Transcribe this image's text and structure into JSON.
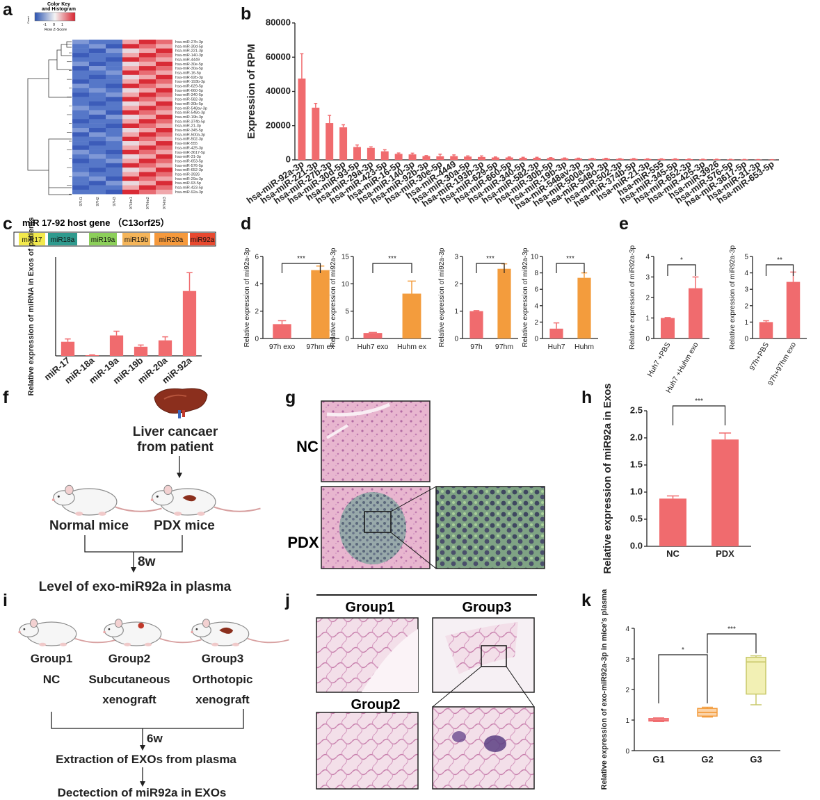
{
  "panels": [
    "a",
    "b",
    "c",
    "d",
    "e",
    "f",
    "g",
    "h",
    "i",
    "j",
    "k"
  ],
  "colors": {
    "red": "#f06b6e",
    "orange": "#f39c3d",
    "green": "#c8c86a",
    "dark": "#222222"
  },
  "a": {
    "color_key_title": "Color Key",
    "color_key_subtitle": "and Histogram",
    "color_key_count": "Count",
    "color_key_ticks": [
      "-1",
      "0",
      "1"
    ],
    "color_key_axis": "Row Z-Score",
    "columns": [
      "97H1",
      "97H2",
      "97H3",
      "97Hm1",
      "97Hm2",
      "97Hm3"
    ],
    "rows": [
      "hsa-miR-27b-3p",
      "hsa-miR-30d-5p",
      "hsa-miR-221-3p",
      "hsa-miR-140-3p",
      "hsa-miR-4449",
      "hsa-miR-30e-5p",
      "hsa-miR-30a-5p",
      "hsa-miR-16-5p",
      "hsa-miR-92b-3p",
      "hsa-miR-193b-3p",
      "hsa-miR-629-5p",
      "hsa-miR-660-5p",
      "hsa-miR-340-5p",
      "hsa-miR-582-3p",
      "hsa-miR-30b-5p",
      "hsa-miR-548av-3p",
      "hsa-miR-548o-3p",
      "hsa-miR-19b-3p",
      "hsa-miR-374b-5p",
      "hsa-miR-21-3p",
      "hsa-miR-345-5p",
      "hsa-miR-500a-3p",
      "hsa-miR-502-3p",
      "hsa-miR-555",
      "hsa-miR-425-3p",
      "hsa-miR-3617-5p",
      "hsa-miR-31-3p",
      "hsa-miR-653-5p",
      "hsa-miR-576-5p",
      "hsa-miR-652-3p",
      "hsa-miR-3926",
      "hsa-miR-29a-3p",
      "hsa-miR-93-5p",
      "hsa-miR-423-5p",
      "hsa-miR-92a-3p"
    ]
  },
  "c": {
    "title": "miR 17-92 host gene （C13orf25）"
  },
  "d": {
    "sig": [
      "***",
      "***",
      "***",
      "***"
    ]
  },
  "e": {
    "sig": [
      "*",
      "**"
    ]
  },
  "f": {
    "source_line1": "Liver cancaer",
    "source_line2": "from patient",
    "normal": "Normal mice",
    "pdx": "PDX mice",
    "duration": "8w",
    "result": "Level of exo-miR92a  in plasma"
  },
  "g": {
    "nc": "NC",
    "pdx": "PDX"
  },
  "i": {
    "group1": [
      "Group1",
      "NC"
    ],
    "group2": [
      "Group2",
      "Subcutaneous",
      "xenograft"
    ],
    "group3": [
      "Group3",
      "Orthotopic",
      "xenograft"
    ],
    "duration": "6w",
    "step1": "Extraction of EXOs from plasma",
    "step2": "Dectection of miR92a in EXOs"
  },
  "j": {
    "group1": "Group1",
    "group3": "Group3",
    "group2": "Group2"
  },
  "chart_data": [
    {
      "panel": "b",
      "type": "bar",
      "ylabel": "Expression of RPM",
      "ylim": [
        0,
        80000
      ],
      "yticks": [
        "0",
        "20000",
        "40000",
        "60000",
        "80000"
      ],
      "categories": [
        "hsa-miR-92a-3p",
        "hsa-miR-221-3p",
        "hsa-miR-27b-3p",
        "hsa-miR-30d-5p",
        "hsa-miR-93-5p",
        "hsa-miR-29a-3p",
        "hsa-miR-423-5p",
        "hsa-miR-16-5p",
        "hsa-miR-140-3p",
        "hsa-miR-92b-3p",
        "hsa-miR-30e-5p",
        "hsa-miR-4449",
        "hsa-miR-30a-5p",
        "hsa-miR-193b-3p",
        "hsa-miR-629-5p",
        "hsa-miR-660-5p",
        "hsa-miR-340-5p",
        "hsa-miR-582-3p",
        "hsa-miR-30b-5p",
        "hsa-miR-19b-3p",
        "hsa-miR-548av-3p",
        "hsa-miR-500a-3p",
        "hsa-miR-548o-3p",
        "hsa-miR-502-3p",
        "hsa-miR-374b-5p",
        "hsa-miR-21-3p",
        "hsa-miR-555",
        "hsa-miR-345-5p",
        "hsa-miR-652-3p",
        "hsa-miR-425-3p",
        "hsa-miR-3926",
        "hsa-miR-576-5p",
        "hsa-miR-3617-5p",
        "hsa-miR-31-3p",
        "hsa-miR-653-5p"
      ],
      "values": [
        47500,
        30500,
        21500,
        19000,
        7500,
        7000,
        5000,
        3500,
        3200,
        2200,
        2100,
        2200,
        1900,
        1700,
        1400,
        1400,
        1200,
        1200,
        1100,
        900,
        800,
        700,
        700,
        600,
        600,
        500,
        500,
        500,
        400,
        300,
        300,
        250,
        200,
        150,
        100
      ],
      "errors": [
        14500,
        2500,
        4500,
        1500,
        1200,
        600,
        900,
        500,
        700,
        300,
        1200,
        700,
        400,
        600,
        300,
        300,
        300,
        300,
        200,
        200,
        200,
        150,
        200,
        100,
        150,
        100,
        100,
        100,
        100,
        80,
        80,
        60,
        50,
        40,
        30
      ]
    },
    {
      "panel": "c",
      "type": "bar",
      "ylabel": "Relative expression of miRNA in Exos of patients",
      "categories": [
        "miR-17",
        "miR-18a",
        "miR-19a",
        "miR-19b",
        "miR-20a",
        "miR-92a"
      ],
      "values": [
        1.0,
        0.05,
        1.45,
        0.65,
        1.1,
        4.6
      ],
      "errors": [
        0.2,
        0.02,
        0.3,
        0.12,
        0.25,
        1.3
      ],
      "ylim": [
        0,
        7
      ],
      "host_gene_segments": [
        "miR17",
        "miR18a",
        "miR19a",
        "miR19b",
        "miR20a",
        "miR92a"
      ]
    },
    {
      "panel": "d1",
      "type": "bar",
      "ylabel": "Relative expression of mi92a-3p",
      "categories": [
        "97h exo",
        "97hm ex"
      ],
      "values": [
        1.05,
        5.0
      ],
      "errors": [
        0.25,
        0.3
      ],
      "ylim": [
        0,
        6
      ],
      "yticks": [
        "0",
        "2",
        "4",
        "6"
      ]
    },
    {
      "panel": "d2",
      "type": "bar",
      "ylabel": "Relative expression of mi92a-3p",
      "categories": [
        "Huh7 exo",
        "Huhm ex"
      ],
      "values": [
        1.0,
        8.2
      ],
      "errors": [
        0.1,
        2.3
      ],
      "ylim": [
        0,
        15
      ],
      "yticks": [
        "0",
        "5",
        "10",
        "15"
      ]
    },
    {
      "panel": "d3",
      "type": "bar",
      "ylabel": "Relative expression of mi92a-3p",
      "categories": [
        "97h",
        "97hm"
      ],
      "values": [
        1.0,
        2.55
      ],
      "errors": [
        0.02,
        0.18
      ],
      "ylim": [
        0,
        3
      ],
      "yticks": [
        "0",
        "1",
        "2",
        "3"
      ]
    },
    {
      "panel": "d4",
      "type": "bar",
      "ylabel": "Relative expression of mi92a-3p",
      "categories": [
        "Huh7",
        "Huhm"
      ],
      "values": [
        1.2,
        7.4
      ],
      "errors": [
        0.7,
        0.6
      ],
      "ylim": [
        0,
        10
      ],
      "yticks": [
        "0",
        "2",
        "4",
        "6",
        "8",
        "10"
      ]
    },
    {
      "panel": "e1",
      "type": "bar",
      "ylabel": "Relative expression of miR92a-3p",
      "categories": [
        "Huh7 +PBS",
        "Huh7 +Huhm exo"
      ],
      "values": [
        1.0,
        2.45
      ],
      "errors": [
        0.02,
        0.55
      ],
      "ylim": [
        0,
        4
      ],
      "yticks": [
        "0",
        "1",
        "2",
        "3",
        "4"
      ]
    },
    {
      "panel": "e2",
      "type": "bar",
      "ylabel": "Relative expression of miR92a-3p",
      "categories": [
        "97h+PBS",
        "97h+97hm exo"
      ],
      "values": [
        1.0,
        3.45
      ],
      "errors": [
        0.08,
        0.6
      ],
      "ylim": [
        0,
        5
      ],
      "yticks": [
        "0",
        "1",
        "2",
        "3",
        "4",
        "5"
      ]
    },
    {
      "panel": "h",
      "type": "bar",
      "ylabel": "Relative expression of miR92a in Exos",
      "categories": [
        "NC",
        "PDX"
      ],
      "values": [
        0.88,
        1.97
      ],
      "errors": [
        0.05,
        0.12
      ],
      "ylim": [
        0,
        2.5
      ],
      "yticks": [
        "0.0",
        "0.5",
        "1.0",
        "1.5",
        "2.0",
        "2.5"
      ],
      "significance": "***"
    },
    {
      "panel": "k",
      "type": "box",
      "ylabel": "Relative expression of exo-miR92a-3p in mice's plasma",
      "categories": [
        "G1",
        "G2",
        "G3"
      ],
      "boxes": [
        {
          "min": 0.95,
          "q1": 0.97,
          "median": 1.0,
          "q3": 1.05,
          "max": 1.07
        },
        {
          "min": 1.1,
          "q1": 1.13,
          "median": 1.25,
          "q3": 1.38,
          "max": 1.42
        },
        {
          "min": 1.5,
          "q1": 1.85,
          "median": 2.9,
          "q3": 3.05,
          "max": 3.1
        }
      ],
      "ylim": [
        0,
        4
      ],
      "yticks": [
        "0",
        "1",
        "2",
        "3",
        "4"
      ],
      "significance": [
        "*",
        "***"
      ]
    }
  ]
}
